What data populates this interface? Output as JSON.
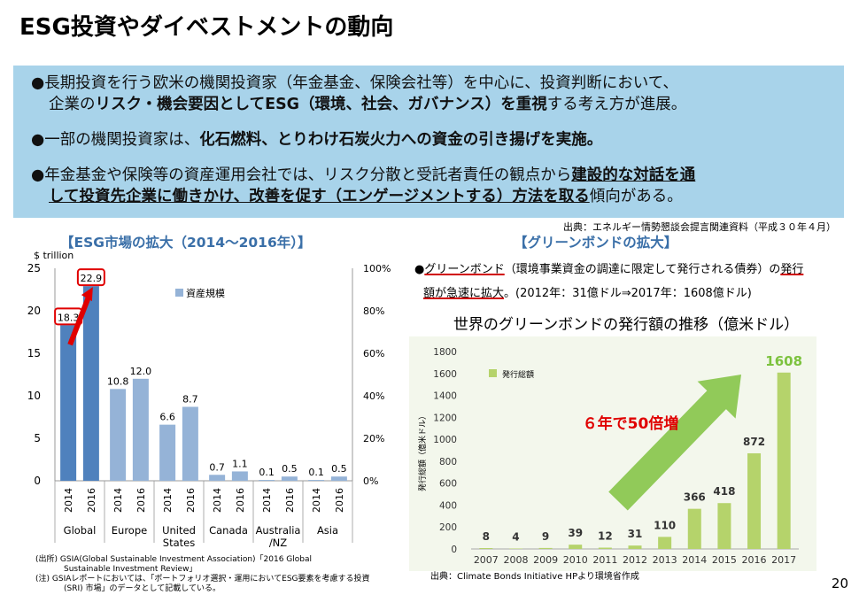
{
  "title": "ESG投資やダイベストメントの動向",
  "summary": {
    "b1_line1": "●長期投資を行う欧米の機関投資家（年金基金、保険会社等）を中心に、投資判断において、",
    "b1_line2_pre": "企業の",
    "b1_line2_bold": "リスク・機会要因としてESG（環境、社会、ガバナンス）を重視",
    "b1_line2_post": "する考え方が進展。",
    "b2_pre": "●一部の機関投資家は、",
    "b2_bold": "化石燃料、とりわけ石炭火力への資金の引き揚げを実施。",
    "b3_line1_pre": "●年金基金や保険等の資産運用会社では、リスク分散と受託者責任の観点から",
    "b3_line1_bold": "建設的な対話を通",
    "b3_line2_bold": "して投資先企業に働きかけ、改善を促す（エンゲージメントする）方法を取る",
    "b3_line2_post": "傾向がある。"
  },
  "source_top": "出典：エネルギー情勢懇談会提言関連資料（平成３０年４月）",
  "left_title": "【ESG市場の拡大（2014～2016年）】",
  "right_title": "【グリーンボンドの拡大】",
  "green_bond_text": {
    "line1_bullet": "●",
    "line1_ul": "グリーンボンド",
    "line1_mid": "（環境事業資金の調達に限定して発行される債券）の",
    "line1_end": "発行",
    "line2_ul": "額が急速に拡大",
    "line2_post": "。(2012年：31億ドル⇒2017年：1608億ドル)"
  },
  "notes": {
    "n1": "(出所) GSIA(Global Sustainable Investment Association)「2016 Global",
    "n2": "Sustainable Investment Review」",
    "n3": "(注) GSIAレポートにおいては、「ポートフォリオ選択・運用においてESG要素を考慮する投資",
    "n4": "(SRI) 市場」のデータとして記載している。"
  },
  "right_source": "出典：Climate Bonds Initiative HPより環境省作成",
  "page_number": "20",
  "chart_data": [
    {
      "type": "bar",
      "ylabel": "$ trillion",
      "ylim": [
        0,
        25
      ],
      "yticks": [
        0,
        5,
        10,
        15,
        20,
        25
      ],
      "y2ticks": [
        "0%",
        "20%",
        "40%",
        "60%",
        "80%",
        "100%"
      ],
      "legend": "資産規模",
      "legend_position": "top-right",
      "groups": [
        "Global",
        "Europe",
        "United States",
        "Canada",
        "Australia /NZ",
        "Asia"
      ],
      "years": [
        "2014",
        "2016"
      ],
      "series": [
        {
          "name": "資産規模",
          "values": [
            18.3,
            22.9,
            10.8,
            12.0,
            6.6,
            8.7,
            0.7,
            1.1,
            0.1,
            0.5,
            0.1,
            0.5
          ],
          "labels": [
            "18.3",
            "22.9",
            "10.8",
            "12.0",
            "6.6",
            "8.7",
            "0.7",
            "1.1",
            "0.1",
            "0.5",
            "0.1",
            "0.5"
          ]
        }
      ],
      "colors": {
        "global": "#4f81bd",
        "other": "#95b3d7",
        "highlight": "#e00000"
      }
    },
    {
      "type": "bar",
      "title": "世界のグリーンボンドの発行額の推移（億米ドル）",
      "ylabel": "発行総額（億米ドル）",
      "legend": "発行総額",
      "legend_position": "top-left",
      "ylim": [
        0,
        1800
      ],
      "yticks": [
        0,
        200,
        400,
        600,
        800,
        1000,
        1200,
        1400,
        1600,
        1800
      ],
      "categories": [
        "2007",
        "2008",
        "2009",
        "2010",
        "2011",
        "2012",
        "2013",
        "2014",
        "2015",
        "2016",
        "2017"
      ],
      "values": [
        8,
        4,
        9,
        39,
        12,
        31,
        110,
        366,
        418,
        872,
        1608
      ],
      "labels": [
        "8",
        "4",
        "9",
        "39",
        "12",
        "31",
        "110",
        "366",
        "418",
        "872",
        "1608"
      ],
      "annotation": "６年で50倍増",
      "colors": {
        "bar": "#b5d36b",
        "highlight_label": "#7cc23e",
        "annotation": "#e00000"
      }
    }
  ]
}
